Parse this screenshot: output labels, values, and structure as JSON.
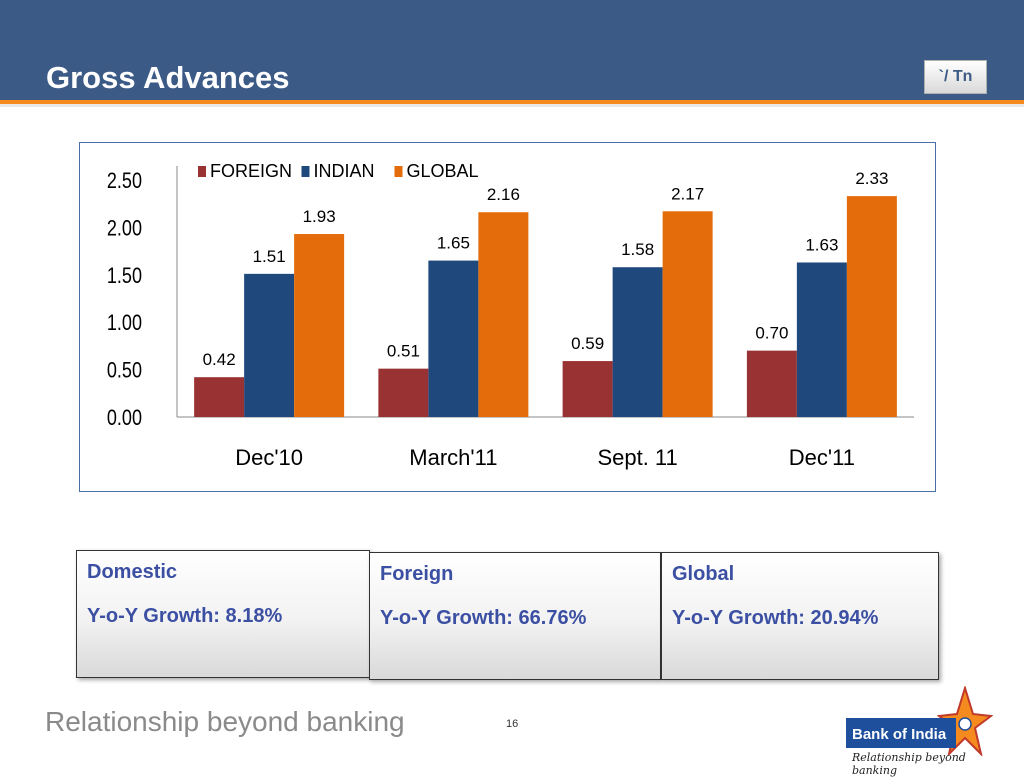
{
  "header": {
    "title": "Gross Advances",
    "unit_badge": "`/ Tn"
  },
  "chart_data": {
    "type": "bar",
    "categories": [
      "Dec'10",
      "March'11",
      "Sept. 11",
      "Dec'11"
    ],
    "series": [
      {
        "name": "FOREIGN",
        "values": [
          0.42,
          0.51,
          0.59,
          0.7
        ],
        "color": "#993333"
      },
      {
        "name": "INDIAN",
        "values": [
          1.51,
          1.65,
          1.58,
          1.63
        ],
        "color": "#1f497d"
      },
      {
        "name": "GLOBAL",
        "values": [
          1.93,
          2.16,
          2.17,
          2.33
        ],
        "color": "#e46c0a"
      }
    ],
    "value_labels": [
      [
        "0.42",
        "0.51",
        "0.59",
        "0.70"
      ],
      [
        "1.51",
        "1.65",
        "1.58",
        "1.63"
      ],
      [
        "1.93",
        "2.16",
        "2.17",
        "2.33"
      ]
    ],
    "y_ticks": [
      "0.00",
      "0.50",
      "1.00",
      "1.50",
      "2.00",
      "2.50"
    ],
    "ylim": [
      0,
      2.5
    ],
    "legend_position": "top-left",
    "grid": false
  },
  "summary_boxes": [
    {
      "title": "Domestic",
      "growth": "Y-o-Y Growth: 8.18%"
    },
    {
      "title": "Foreign",
      "growth": "Y-o-Y Growth: 66.76%"
    },
    {
      "title": "Global",
      "growth": "Y-o-Y Growth: 20.94%"
    }
  ],
  "footer": {
    "tagline": "Relationship beyond banking",
    "page_number": "16"
  },
  "logo": {
    "name": "Bank of India",
    "tagline": "Relationship beyond banking"
  }
}
